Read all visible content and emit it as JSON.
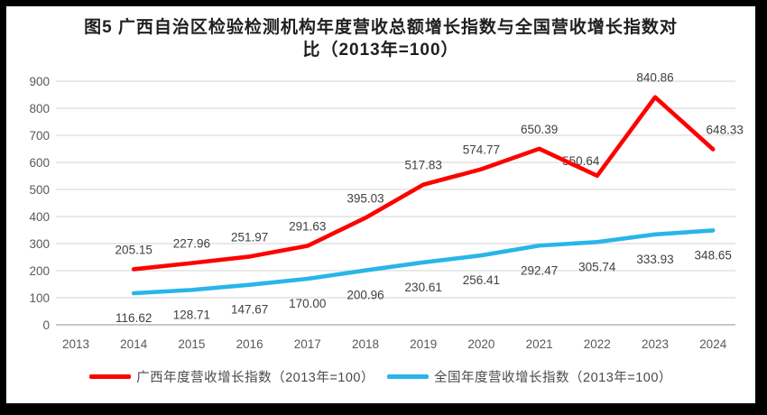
{
  "chart_data": {
    "type": "line",
    "title_lines": [
      "图5  广西自治区检验检测机构年度营收总额增长指数与全国营收增长指数对",
      "比（2013年=100）"
    ],
    "categories": [
      "2013",
      "2014",
      "2015",
      "2016",
      "2017",
      "2018",
      "2019",
      "2020",
      "2021",
      "2022",
      "2023",
      "2024"
    ],
    "series": [
      {
        "name": "广西年度营收增长指数（2013年=100）",
        "color": "#fe0000",
        "label_position": "above",
        "values": [
          null,
          205.15,
          227.96,
          251.97,
          291.63,
          395.03,
          517.83,
          574.77,
          650.39,
          550.64,
          840.86,
          648.33
        ]
      },
      {
        "name": "全国年度营收增长指数（2013年=100）",
        "color": "#29b5e9",
        "label_position": "below",
        "values": [
          null,
          116.62,
          128.71,
          147.67,
          170.0,
          200.96,
          230.61,
          256.41,
          292.47,
          305.74,
          333.93,
          348.65
        ]
      }
    ],
    "ylim": [
      0,
      900
    ],
    "ytick_labels": [
      "0",
      "100",
      "200",
      "300",
      "400",
      "500",
      "600",
      "700",
      "800",
      "900"
    ],
    "grid": true,
    "legend_position": "bottom",
    "colors": {
      "grid": "#dcdcdc",
      "axis": "#c0c0c0",
      "tick_text": "#595959",
      "data_label_text": "#404040",
      "title_text": "#1f1f1f",
      "frame_border": "#000000",
      "background": "#ffffff"
    }
  }
}
